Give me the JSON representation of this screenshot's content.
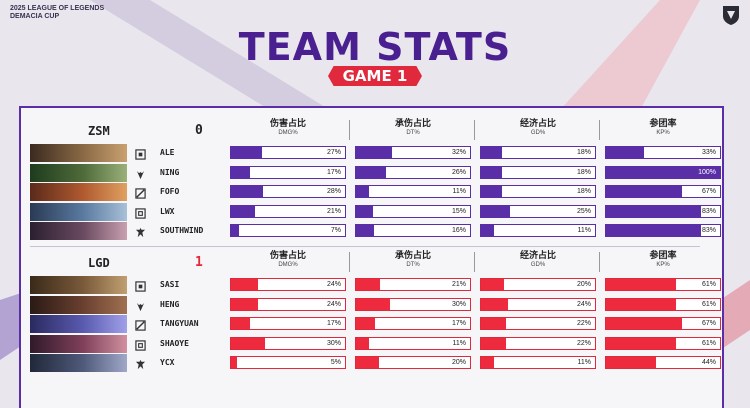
{
  "event": {
    "line1": "2025 LEAGUE OF LEGENDS",
    "line2": "DEMACIA CUP"
  },
  "title": "TEAM STATS",
  "game_label": "GAME 1",
  "columns": [
    {
      "cn": "伤害占比",
      "en": "DMG%"
    },
    {
      "cn": "承伤占比",
      "en": "DT%"
    },
    {
      "cn": "经济占比",
      "en": "GD%"
    },
    {
      "cn": "参团率",
      "en": "KP%"
    }
  ],
  "colors": {
    "zsm": "#5a2ea6",
    "lgd": "#e0293c"
  },
  "teams": [
    {
      "name": "ZSM",
      "score": "0",
      "color": "purple",
      "players": [
        {
          "name": "ALE",
          "role": "top-icon",
          "dmg": 27,
          "dt": 32,
          "gd": 18,
          "kp": 33
        },
        {
          "name": "NING",
          "role": "jungle-icon",
          "dmg": 17,
          "dt": 26,
          "gd": 18,
          "kp": 100
        },
        {
          "name": "FOFO",
          "role": "mid-icon",
          "dmg": 28,
          "dt": 11,
          "gd": 18,
          "kp": 67
        },
        {
          "name": "LWX",
          "role": "bot-icon",
          "dmg": 21,
          "dt": 15,
          "gd": 25,
          "kp": 83
        },
        {
          "name": "SOUTHWIND",
          "role": "support-icon",
          "dmg": 7,
          "dt": 16,
          "gd": 11,
          "kp": 83
        }
      ]
    },
    {
      "name": "LGD",
      "score": "1",
      "color": "red",
      "players": [
        {
          "name": "SASI",
          "role": "top-icon",
          "dmg": 24,
          "dt": 21,
          "gd": 20,
          "kp": 61
        },
        {
          "name": "HENG",
          "role": "jungle-icon",
          "dmg": 24,
          "dt": 30,
          "gd": 24,
          "kp": 61
        },
        {
          "name": "TANGYUAN",
          "role": "mid-icon",
          "dmg": 17,
          "dt": 17,
          "gd": 22,
          "kp": 67
        },
        {
          "name": "SHAOYE",
          "role": "bot-icon",
          "dmg": 30,
          "dt": 11,
          "gd": 22,
          "kp": 61
        },
        {
          "name": "YCX",
          "role": "support-icon",
          "dmg": 5,
          "dt": 20,
          "gd": 11,
          "kp": 44
        }
      ]
    }
  ]
}
